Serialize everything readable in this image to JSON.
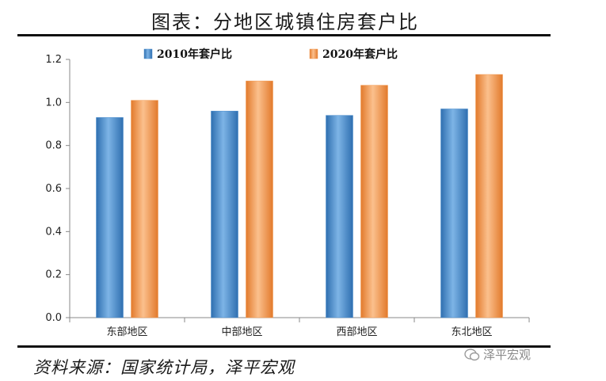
{
  "header": {
    "title": "图表：分地区城镇住房套户比"
  },
  "footer": {
    "source": "资料来源：国家统计局，泽平宏观",
    "watermark": "泽平宏观"
  },
  "colors": {
    "series_2010": "#4a8ccc",
    "series_2020": "#f29a52",
    "axis": "#888888"
  },
  "chart_data": {
    "type": "bar",
    "categories": [
      "东部地区",
      "中部地区",
      "西部地区",
      "东北地区"
    ],
    "series": [
      {
        "name": "2010年套户比",
        "values": [
          0.93,
          0.96,
          0.94,
          0.97
        ]
      },
      {
        "name": "2020年套户比",
        "values": [
          1.01,
          1.1,
          1.08,
          1.13
        ]
      }
    ],
    "yticks": [
      "0.0",
      "0.2",
      "0.4",
      "0.6",
      "0.8",
      "1.0",
      "1.2"
    ],
    "ylim": [
      0,
      1.2
    ],
    "legend_position": "top-center",
    "grid": false
  }
}
